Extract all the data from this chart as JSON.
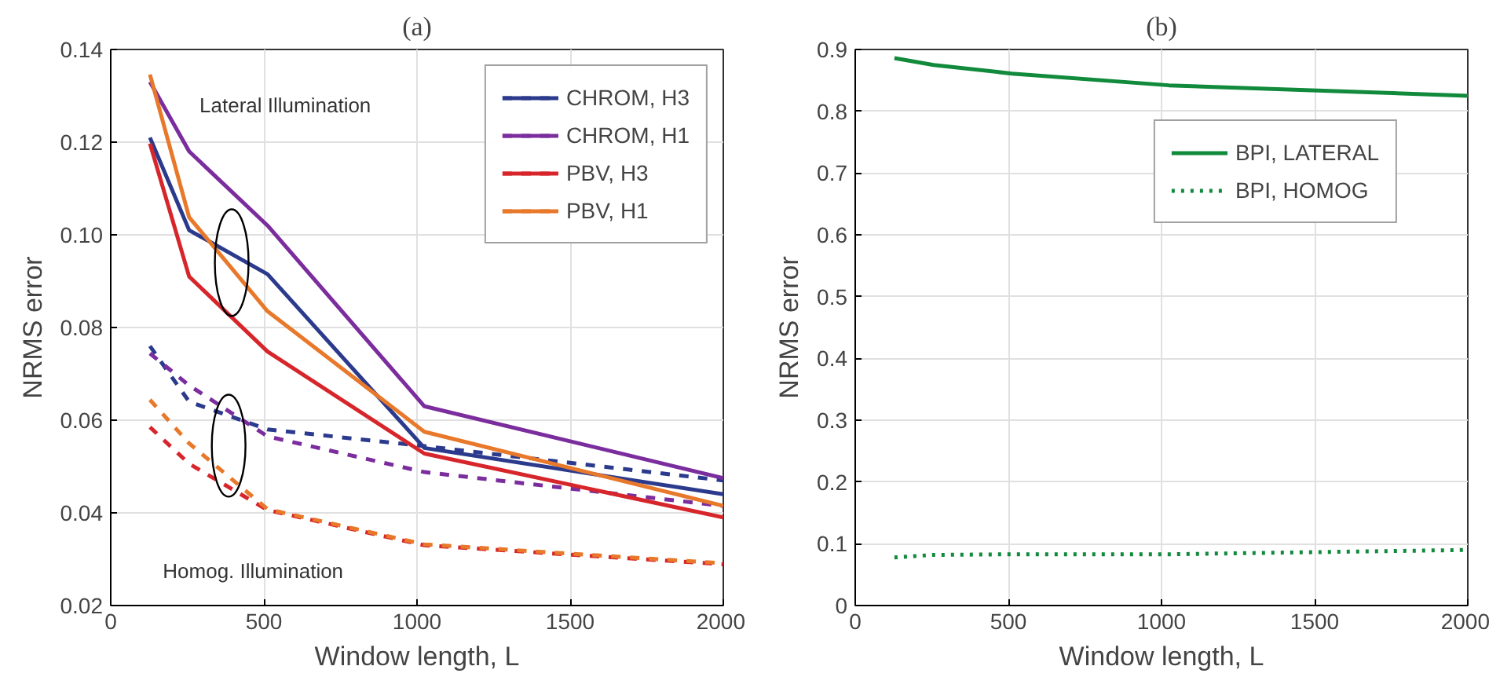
{
  "chart_data": [
    {
      "type": "line",
      "title": "(a)",
      "xlabel": "Window length, L",
      "ylabel": "NRMS error",
      "x": [
        128,
        256,
        512,
        1024,
        2000
      ],
      "xlim": [
        0,
        2000
      ],
      "xticks": [
        0,
        500,
        1000,
        1500,
        2000
      ],
      "ylim": [
        0.02,
        0.14
      ],
      "yticks": [
        {
          "value": 0.02,
          "label": "0.02"
        },
        {
          "value": 0.04,
          "label": "0.04"
        },
        {
          "value": 0.06,
          "label": "0.06"
        },
        {
          "value": 0.08,
          "label": "0.08"
        },
        {
          "value": 0.1,
          "label": "0.10"
        },
        {
          "value": 0.12,
          "label": "0.12"
        },
        {
          "value": 0.14,
          "label": "0.14"
        }
      ],
      "grid": true,
      "legend": "top right",
      "annotations": [
        "Lateral Illumination",
        "Homog. Illumination"
      ],
      "series": [
        {
          "name": "CHROM, H3",
          "color": "#2b3a8c",
          "line_style": "solid",
          "values": [
            0.121,
            0.101,
            0.0915,
            0.054,
            0.044
          ]
        },
        {
          "color": "#2b3a8c",
          "line_style": "dashed",
          "values": [
            0.076,
            0.064,
            0.058,
            0.0544,
            0.047
          ]
        },
        {
          "name": "CHROM, H1",
          "color": "#7b2d9e",
          "line_style": "solid",
          "values": [
            0.133,
            0.118,
            0.102,
            0.063,
            0.0475
          ]
        },
        {
          "color": "#7b2d9e",
          "line_style": "dashed",
          "values": [
            0.0744,
            0.0675,
            0.0565,
            0.0488,
            0.0415
          ]
        },
        {
          "name": "PBV, H3",
          "color": "#d7262b",
          "line_style": "solid",
          "values": [
            0.1197,
            0.091,
            0.0748,
            0.0528,
            0.039
          ]
        },
        {
          "color": "#d7262b",
          "line_style": "dashed",
          "values": [
            0.0585,
            0.0506,
            0.0406,
            0.033,
            0.0289
          ]
        },
        {
          "name": "PBV, H1",
          "color": "#e8782a",
          "line_style": "solid",
          "values": [
            0.1346,
            0.1038,
            0.0835,
            0.0575,
            0.0415
          ]
        },
        {
          "color": "#e8782a",
          "line_style": "dashed",
          "values": [
            0.0644,
            0.055,
            0.0408,
            0.0332,
            0.0291
          ]
        }
      ]
    },
    {
      "type": "line",
      "title": "(b)",
      "xlabel": "Window length, L",
      "ylabel": "NRMS error",
      "x": [
        128,
        256,
        512,
        1024,
        2000
      ],
      "xlim": [
        0,
        2000
      ],
      "xticks": [
        0,
        500,
        1000,
        1500,
        2000
      ],
      "ylim": [
        0,
        0.9
      ],
      "yticks": [
        0,
        0.1,
        0.2,
        0.3,
        0.4,
        0.5,
        0.6,
        0.7,
        0.8,
        0.9
      ],
      "grid": true,
      "legend": "top right",
      "series": [
        {
          "name": "BPI, LATERAL",
          "color": "#118a3c",
          "line_style": "solid",
          "values": [
            0.886,
            0.875,
            0.861,
            0.842,
            0.825
          ]
        },
        {
          "name": "BPI, HOMOG",
          "color": "#118a3c",
          "line_style": "dotted",
          "values": [
            0.078,
            0.082,
            0.083,
            0.083,
            0.09
          ]
        }
      ]
    }
  ]
}
